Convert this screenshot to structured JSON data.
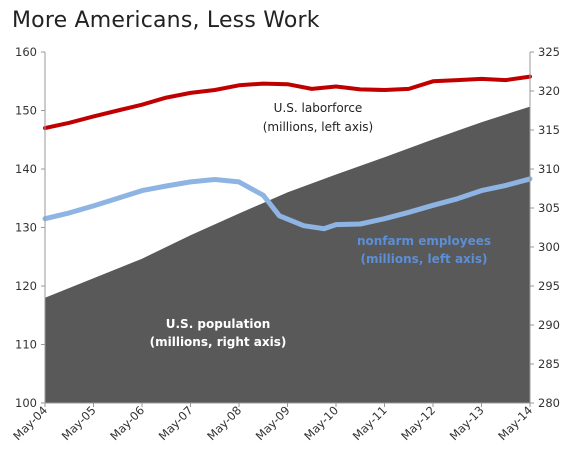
{
  "title": "More Americans, Less Work",
  "chart_data": {
    "type": "line",
    "x_tick_labels": [
      "May-04",
      "May-05",
      "May-06",
      "May-07",
      "May-08",
      "May-09",
      "May-10",
      "May-11",
      "May-12",
      "May-13",
      "May-14"
    ],
    "x_range": [
      "May-04",
      "May-14"
    ],
    "left_axis": {
      "range": [
        100,
        160
      ],
      "ticks": [
        100,
        110,
        120,
        130,
        140,
        150,
        160
      ]
    },
    "right_axis": {
      "range": [
        280,
        325
      ],
      "ticks": [
        280,
        285,
        290,
        295,
        300,
        305,
        310,
        315,
        320,
        325
      ]
    },
    "series": [
      {
        "name": "U.S. laborforce (millions, left axis)",
        "axis": "left",
        "style": "line",
        "color": "#c00000",
        "x": [
          "May-04",
          "Nov-04",
          "May-05",
          "Nov-05",
          "May-06",
          "Nov-06",
          "May-07",
          "Nov-07",
          "May-08",
          "Nov-08",
          "May-09",
          "Nov-09",
          "May-10",
          "Nov-10",
          "May-11",
          "Nov-11",
          "May-12",
          "Nov-12",
          "May-13",
          "Nov-13",
          "May-14"
        ],
        "values": [
          147.0,
          147.9,
          149.0,
          150.0,
          151.0,
          152.2,
          153.0,
          153.5,
          154.3,
          154.6,
          154.5,
          153.7,
          154.1,
          153.6,
          153.5,
          153.7,
          155.0,
          155.2,
          155.4,
          155.2,
          155.8
        ]
      },
      {
        "name": "nonfarm employees (millions, left axis)",
        "axis": "left",
        "style": "line",
        "color": "#8eb4e3",
        "x": [
          "May-04",
          "Nov-04",
          "May-05",
          "Nov-05",
          "May-06",
          "Nov-06",
          "May-07",
          "Nov-07",
          "May-08",
          "Nov-08",
          "Mar-09",
          "Sep-09",
          "Feb-10",
          "May-10",
          "Nov-10",
          "May-11",
          "Nov-11",
          "May-12",
          "Nov-12",
          "May-13",
          "Nov-13",
          "May-14"
        ],
        "values": [
          131.5,
          132.5,
          133.7,
          135.0,
          136.3,
          137.1,
          137.8,
          138.2,
          137.8,
          135.5,
          132.0,
          130.3,
          129.8,
          130.5,
          130.6,
          131.5,
          132.6,
          133.8,
          134.9,
          136.3,
          137.2,
          138.3
        ]
      },
      {
        "name": "U.S. population (millions, right axis)",
        "axis": "right",
        "style": "area",
        "color": "#595959",
        "x": [
          "May-04",
          "May-05",
          "May-06",
          "May-07",
          "May-08",
          "May-09",
          "May-10",
          "May-11",
          "May-12",
          "May-13",
          "May-14"
        ],
        "values": [
          293.5,
          296.0,
          298.5,
          301.5,
          304.3,
          307.0,
          309.3,
          311.5,
          313.8,
          316.0,
          318.0
        ]
      }
    ],
    "annotations": [
      {
        "text_line1": "U.S. laborforce",
        "text_line2": "(millions, left axis)",
        "color": "#222222"
      },
      {
        "text_line1": "nonfarm employees",
        "text_line2": "(millions, left axis)",
        "color": "#5b8fd6"
      },
      {
        "text_line1": "U.S. population",
        "text_line2": "(millions, right axis)",
        "color": "#ffffff"
      }
    ]
  }
}
